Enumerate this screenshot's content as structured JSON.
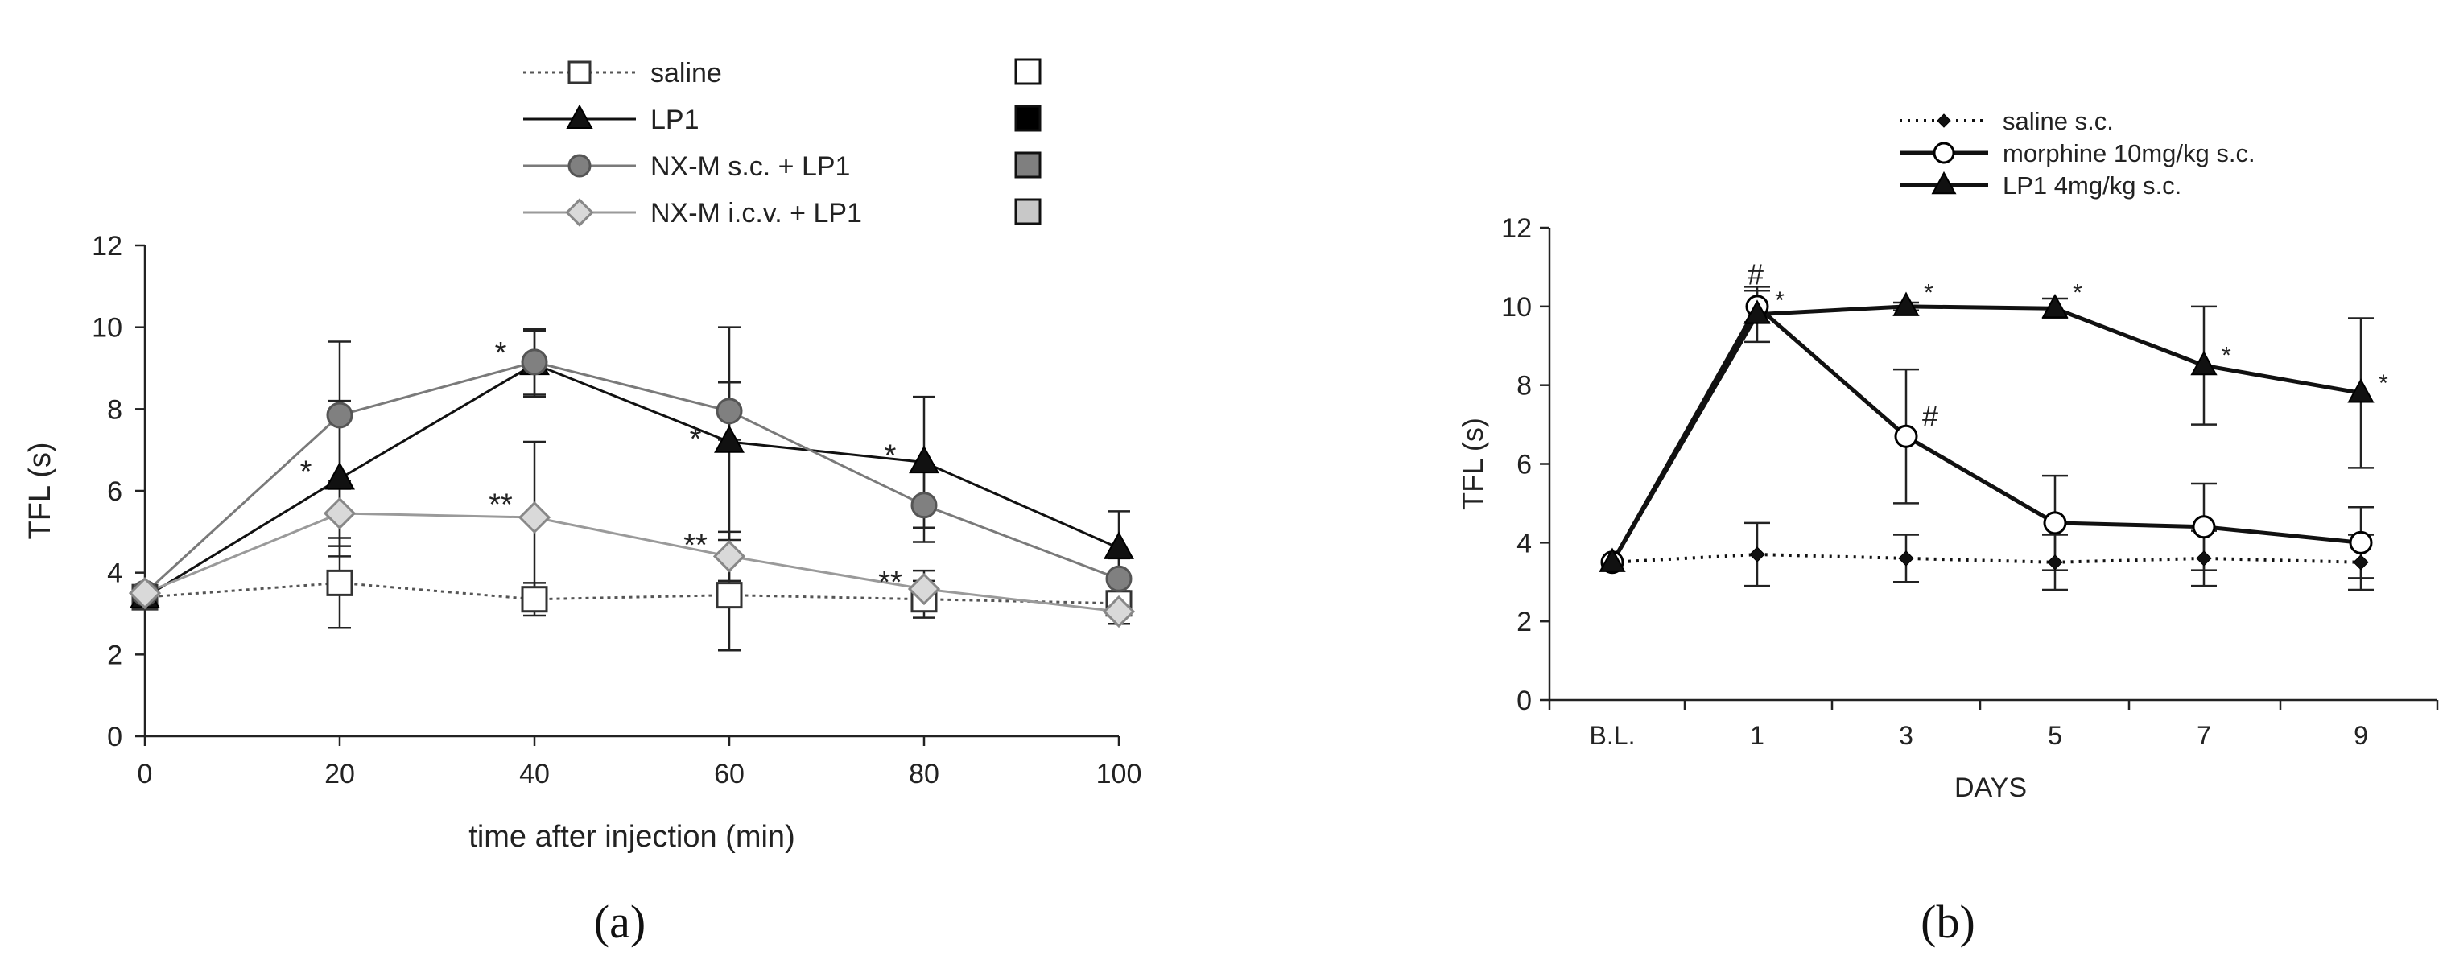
{
  "chart_data": [
    {
      "panel_label": "(a)",
      "type": "line",
      "title": "",
      "xlabel": "time after injection (min)",
      "ylabel": "TFL (s)",
      "x": [
        0,
        20,
        40,
        60,
        80,
        100
      ],
      "x_ticks": [
        0,
        20,
        40,
        60,
        80,
        100
      ],
      "y_ticks": [
        0,
        2,
        4,
        6,
        8,
        10,
        12
      ],
      "xlim": [
        0,
        100
      ],
      "ylim": [
        0,
        12
      ],
      "grid": false,
      "legend_position": "top-center",
      "series": [
        {
          "name": "saline",
          "marker": "open-square",
          "line_style": "dotted",
          "color": "#555555",
          "values": [
            3.4,
            3.75,
            3.35,
            3.45,
            3.35,
            3.25
          ],
          "errors": [
            0,
            1.1,
            0.4,
            1.35,
            0.45,
            0.3
          ],
          "swatch": "white"
        },
        {
          "name": "LP1",
          "marker": "filled-triangle",
          "line_style": "solid",
          "color": "#111111",
          "values": [
            3.4,
            6.3,
            9.1,
            7.2,
            6.7,
            4.6
          ],
          "errors": [
            0,
            1.9,
            0.8,
            2.8,
            1.6,
            0.9
          ],
          "swatch": "black"
        },
        {
          "name": "NX-M s.c. + LP1",
          "marker": "gray-circle",
          "line_style": "solid",
          "color": "#7a7a7a",
          "values": [
            3.5,
            7.85,
            9.15,
            7.95,
            5.65,
            3.85
          ],
          "errors": [
            0,
            1.8,
            0.8,
            0.7,
            0.9,
            0.5
          ],
          "swatch": "dark-gray"
        },
        {
          "name": "NX-M i.c.v. + LP1",
          "marker": "light-diamond",
          "line_style": "solid",
          "color": "#9a9a9a",
          "values": [
            3.5,
            5.45,
            5.35,
            4.4,
            3.6,
            3.05
          ],
          "errors": [
            0,
            0.8,
            1.85,
            0.6,
            0.45,
            0.3
          ],
          "swatch": "light-gray"
        }
      ],
      "annotations": [
        {
          "text": "*",
          "x": 20,
          "y": 6.5
        },
        {
          "text": "*",
          "x": 40,
          "y": 9.4
        },
        {
          "text": "**",
          "x": 40,
          "y": 5.7
        },
        {
          "text": "*",
          "x": 60,
          "y": 7.3
        },
        {
          "text": "**",
          "x": 60,
          "y": 4.7
        },
        {
          "text": "*",
          "x": 80,
          "y": 6.9
        },
        {
          "text": "**",
          "x": 80,
          "y": 3.8
        }
      ]
    },
    {
      "panel_label": "(b)",
      "type": "line",
      "title": "",
      "xlabel": "DAYS",
      "ylabel": "TFL (s)",
      "categories": [
        "B.L.",
        "1",
        "3",
        "5",
        "7",
        "9"
      ],
      "y_ticks": [
        0,
        2,
        4,
        6,
        8,
        10,
        12
      ],
      "ylim": [
        0,
        12
      ],
      "grid": false,
      "legend_position": "top-right",
      "series": [
        {
          "name": "saline s.c.",
          "marker": "small-filled-diamond",
          "line_style": "dotted",
          "color": "#111111",
          "values": [
            3.5,
            3.7,
            3.6,
            3.5,
            3.6,
            3.5
          ],
          "errors": [
            0,
            0.8,
            0.6,
            0.7,
            0.7,
            0.7
          ]
        },
        {
          "name": "morphine 10mg/kg s.c.",
          "marker": "open-circle",
          "line_style": "solid",
          "color": "#111111",
          "values": [
            3.5,
            10.0,
            6.7,
            4.5,
            4.4,
            4.0
          ],
          "errors": [
            0,
            0.4,
            1.7,
            1.2,
            1.1,
            0.9
          ]
        },
        {
          "name": "LP1 4mg/kg s.c.",
          "marker": "filled-triangle",
          "line_style": "solid",
          "color": "#111111",
          "values": [
            3.5,
            9.8,
            10.0,
            9.95,
            8.5,
            7.8
          ],
          "errors": [
            0,
            0.7,
            0.1,
            0.25,
            1.5,
            1.9
          ]
        }
      ],
      "annotations": [
        {
          "text": "#",
          "x": "1",
          "y": 10.8
        },
        {
          "text": "*",
          "x": "1",
          "y": 10.2
        },
        {
          "text": "#",
          "x": "3",
          "y": 7.2
        },
        {
          "text": "*",
          "x": "3",
          "y": 10.4
        },
        {
          "text": "*",
          "x": "5",
          "y": 10.4
        },
        {
          "text": "*",
          "x": "7",
          "y": 8.8
        },
        {
          "text": "*",
          "x": "9",
          "y": 8.1
        }
      ]
    }
  ]
}
